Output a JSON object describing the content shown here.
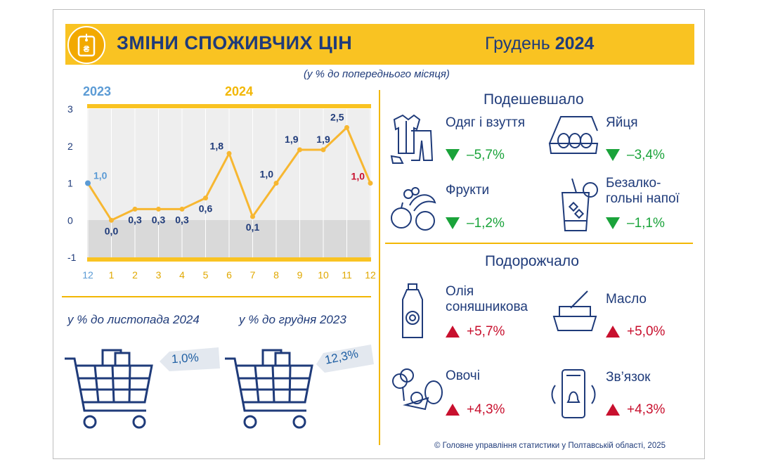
{
  "header": {
    "title": "ЗМІНИ СПОЖИВЧИХ ЦІН",
    "month_word": "Грудень",
    "month_year": "2024"
  },
  "subtitle": "(у % до попереднього місяця)",
  "year_labels": [
    "2023",
    "2024"
  ],
  "chart_data": {
    "type": "line",
    "x": [
      "12",
      "1",
      "2",
      "3",
      "4",
      "5",
      "6",
      "7",
      "8",
      "9",
      "10",
      "11",
      "12"
    ],
    "values": [
      1.0,
      0.0,
      0.3,
      0.3,
      0.3,
      0.6,
      1.8,
      0.1,
      1.0,
      1.9,
      1.9,
      2.5,
      1.0
    ],
    "labels": [
      "1,0",
      "0,0",
      "0,3",
      "0,3",
      "0,3",
      "0,6",
      "1,8",
      "0,1",
      "1,0",
      "1,9",
      "1,9",
      "2,5",
      "1,0"
    ],
    "yticks": [
      "3",
      "2",
      "1",
      "0",
      "-1"
    ],
    "ylim": [
      -1,
      3
    ],
    "colors": {
      "line": "#f7b731",
      "first_point": "#5b9bd5",
      "last_label": "#c8102e",
      "label": "#1f3b7a"
    }
  },
  "cheaper": {
    "title": "Подешевшало",
    "items": [
      {
        "label": "Одяг і взуття",
        "value": "–5,7%",
        "icon": "clothes-icon"
      },
      {
        "label": "Яйця",
        "value": "–3,4%",
        "icon": "eggs-icon"
      },
      {
        "label": "Фрукти",
        "value": "–1,2%",
        "icon": "fruits-icon"
      },
      {
        "label_line1": "Безалко-",
        "label_line2": "гольні напої",
        "value": "–1,1%",
        "icon": "drink-icon"
      }
    ]
  },
  "pricier": {
    "title": "Подорожчало",
    "items": [
      {
        "label_line1": "Олія",
        "label_line2": "соняшникова",
        "value": "+5,7%",
        "icon": "oil-bottle-icon"
      },
      {
        "label": "Масло",
        "value": "+5,0%",
        "icon": "butter-icon"
      },
      {
        "label": "Овочі",
        "value": "+4,3%",
        "icon": "vegetables-icon"
      },
      {
        "label": "Зв’язок",
        "value": "+4,3%",
        "icon": "phone-icon"
      }
    ]
  },
  "comparisons": [
    {
      "label": "у % до листопада 2024",
      "value": "1,0%"
    },
    {
      "label": "у % до грудня 2023",
      "value": "12,3%"
    }
  ],
  "footer": "© Головне управління статистики у Полтавській області, 2025"
}
